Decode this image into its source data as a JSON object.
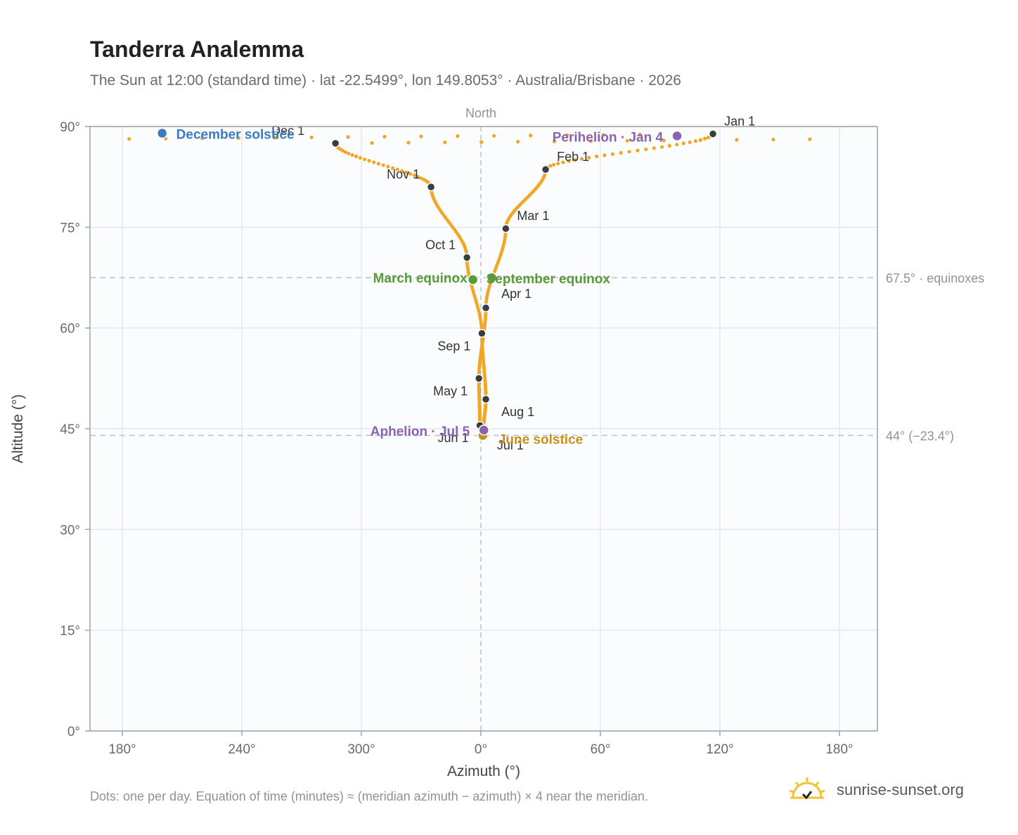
{
  "header": {
    "title": "Tanderra Analemma",
    "subtitle": "The Sun at 12:00 (standard time) · lat -22.5499°, lon 149.8053° · Australia/Brisbane · 2026"
  },
  "footer": {
    "note": "Dots: one per day. Equation of time (minutes) ≈ (meridian azimuth − azimuth) × 4 near the meridian.",
    "brand": "sunrise-sunset.org"
  },
  "colors": {
    "curve": "#f2a626",
    "month_marker": "#3a3d42",
    "december_solstice": "#3b7bbf",
    "june_solstice": "#c98f1b",
    "equinox": "#5a9a3a",
    "apsis": "#8c62b0",
    "grid": "#e4e8ee",
    "plot_bg": "#fafcfe",
    "frame": "#9aa3b2",
    "ref_line": "#b7c2cc"
  },
  "chart_data": {
    "type": "scatter",
    "xlabel": "Azimuth (°)",
    "ylabel": "Altitude (°)",
    "ylim": [
      0,
      90
    ],
    "x_ticks": [
      "180°",
      "240°",
      "300°",
      "0°",
      "60°",
      "120°",
      "180°"
    ],
    "y_ticks": [
      "0°",
      "15°",
      "30°",
      "45°",
      "60°",
      "75°",
      "90°"
    ],
    "grid": true,
    "north_label": "North",
    "reference_lines": [
      {
        "altitude": 67.5,
        "label": "67.5° · equinoxes"
      },
      {
        "altitude": 44.0,
        "label": "44° (−23.4°)"
      }
    ],
    "month_markers": [
      {
        "label": "Jan 1",
        "azimuth": 116.5,
        "altitude": 88.9
      },
      {
        "label": "Feb 1",
        "azimuth": 32.5,
        "altitude": 83.6
      },
      {
        "label": "Mar 1",
        "azimuth": 12.5,
        "altitude": 74.8
      },
      {
        "label": "Apr 1",
        "azimuth": 2.5,
        "altitude": 63.0
      },
      {
        "label": "May 1",
        "azimuth": -1.0,
        "altitude": 52.5
      },
      {
        "label": "Jun 1",
        "azimuth": -0.5,
        "altitude": 45.5
      },
      {
        "label": "Jul 1",
        "azimuth": 1.0,
        "altitude": 44.0
      },
      {
        "label": "Aug 1",
        "azimuth": 2.5,
        "altitude": 49.4
      },
      {
        "label": "Sep 1",
        "azimuth": 0.5,
        "altitude": 59.2
      },
      {
        "label": "Oct 1",
        "azimuth": -7.0,
        "altitude": 70.5
      },
      {
        "label": "Nov 1",
        "azimuth": -25.0,
        "altitude": 81.0
      },
      {
        "label": "Dec 1",
        "azimuth": -73.0,
        "altitude": 87.5
      }
    ],
    "events": [
      {
        "label": "December solstice",
        "azimuth": -160.0,
        "altitude": 89.0
      },
      {
        "label": "June solstice",
        "azimuth": 1.0,
        "altitude": 44.0
      },
      {
        "label": "March equinox",
        "azimuth": -4.0,
        "altitude": 67.2
      },
      {
        "label": "September equinox",
        "azimuth": 5.5,
        "altitude": 67.5
      },
      {
        "label": "Perihelion · Jan 4",
        "azimuth": 98.5,
        "altitude": 88.6
      },
      {
        "label": "Aphelion · Jul 5",
        "azimuth": 1.5,
        "altitude": 44.8
      }
    ]
  }
}
